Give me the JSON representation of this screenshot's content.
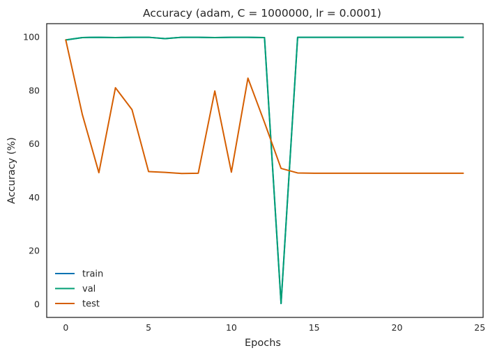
{
  "chart_data": {
    "type": "line",
    "title": "Accuracy (adam, C = 1000000, lr = 0.0001)",
    "xlabel": "Epochs",
    "ylabel": "Accuracy (%)",
    "xlim": [
      -1.15,
      25.2
    ],
    "ylim": [
      -5,
      105
    ],
    "xticks": [
      0,
      5,
      10,
      15,
      20,
      25
    ],
    "yticks": [
      0,
      20,
      40,
      60,
      80,
      100
    ],
    "grid": false,
    "legend_position": "lower-left",
    "x": [
      0,
      1,
      2,
      3,
      4,
      5,
      6,
      7,
      8,
      9,
      10,
      11,
      12,
      13,
      14,
      15,
      16,
      17,
      18,
      19,
      20,
      21,
      22,
      23,
      24
    ],
    "series": [
      {
        "name": "train",
        "color": "#0072b2",
        "values": [
          98.9,
          99.8,
          99.9,
          99.8,
          99.9,
          99.9,
          99.4,
          99.9,
          99.9,
          99.8,
          99.9,
          99.9,
          99.8,
          0.2,
          99.9,
          99.9,
          99.9,
          99.9,
          99.9,
          99.9,
          99.9,
          99.9,
          99.9,
          99.9,
          99.9
        ]
      },
      {
        "name": "val",
        "color": "#009e73",
        "values": [
          98.9,
          99.8,
          99.9,
          99.8,
          99.9,
          99.9,
          99.4,
          99.9,
          99.9,
          99.8,
          99.9,
          99.9,
          99.8,
          0.2,
          99.9,
          99.9,
          99.9,
          99.9,
          99.9,
          99.9,
          99.9,
          99.9,
          99.9,
          99.9,
          99.9
        ]
      },
      {
        "name": "test",
        "color": "#d55e00",
        "values": [
          98.9,
          71.0,
          49.2,
          81.0,
          72.8,
          49.6,
          49.3,
          48.9,
          49.0,
          79.8,
          49.4,
          84.6,
          68.0,
          50.8,
          49.1,
          49.0,
          49.0,
          49.0,
          49.0,
          49.0,
          49.0,
          49.0,
          49.0,
          49.0,
          49.0
        ]
      }
    ]
  }
}
